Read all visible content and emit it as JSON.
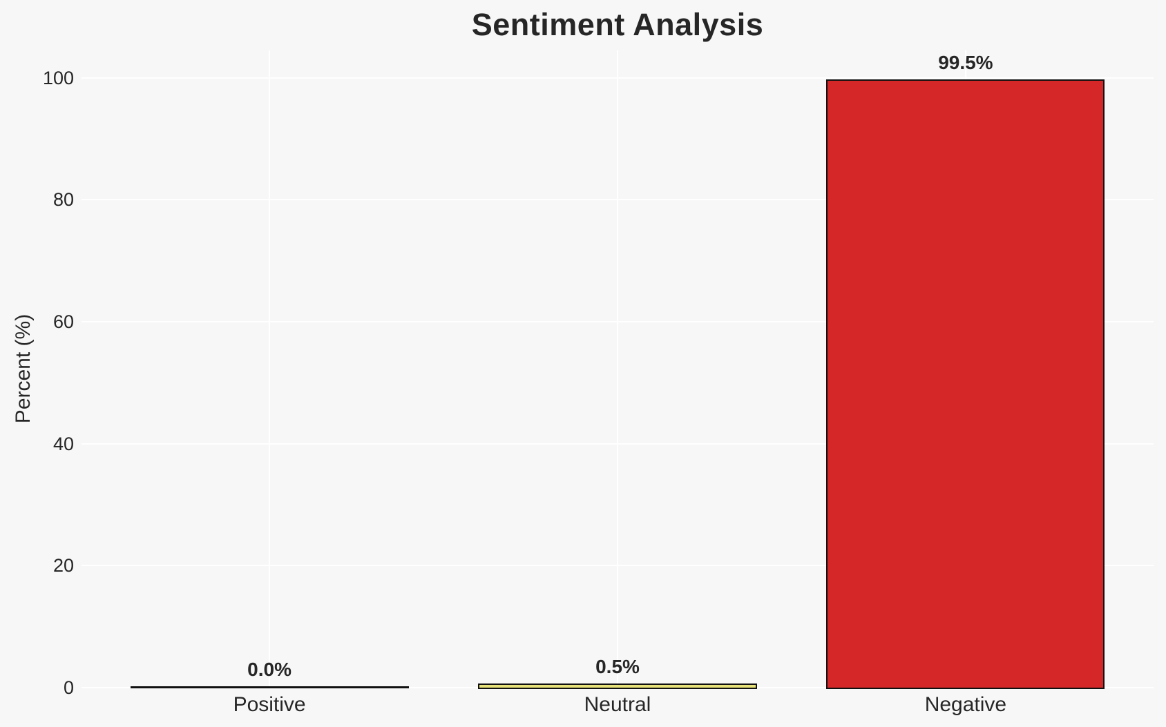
{
  "chart_data": {
    "type": "bar",
    "title": "Sentiment Analysis",
    "xlabel": "",
    "ylabel": "Percent (%)",
    "categories": [
      "Positive",
      "Neutral",
      "Negative"
    ],
    "values": [
      0.0,
      0.5,
      99.5
    ],
    "bar_labels": [
      "0.0%",
      "0.5%",
      "99.5%"
    ],
    "yticks": [
      0,
      20,
      40,
      60,
      80,
      100
    ],
    "ylim": [
      0,
      104.5
    ],
    "xlim": [
      -0.54,
      2.54
    ],
    "bar_width": 0.8,
    "grid": true,
    "legend": "none",
    "colors": {
      "bar_fills": [
        "none",
        "#e6e178",
        "#d62728"
      ],
      "bar_edge": "#111111",
      "background": "#f7f7f8",
      "gridline": "#ffffff",
      "text": "#262626"
    }
  }
}
